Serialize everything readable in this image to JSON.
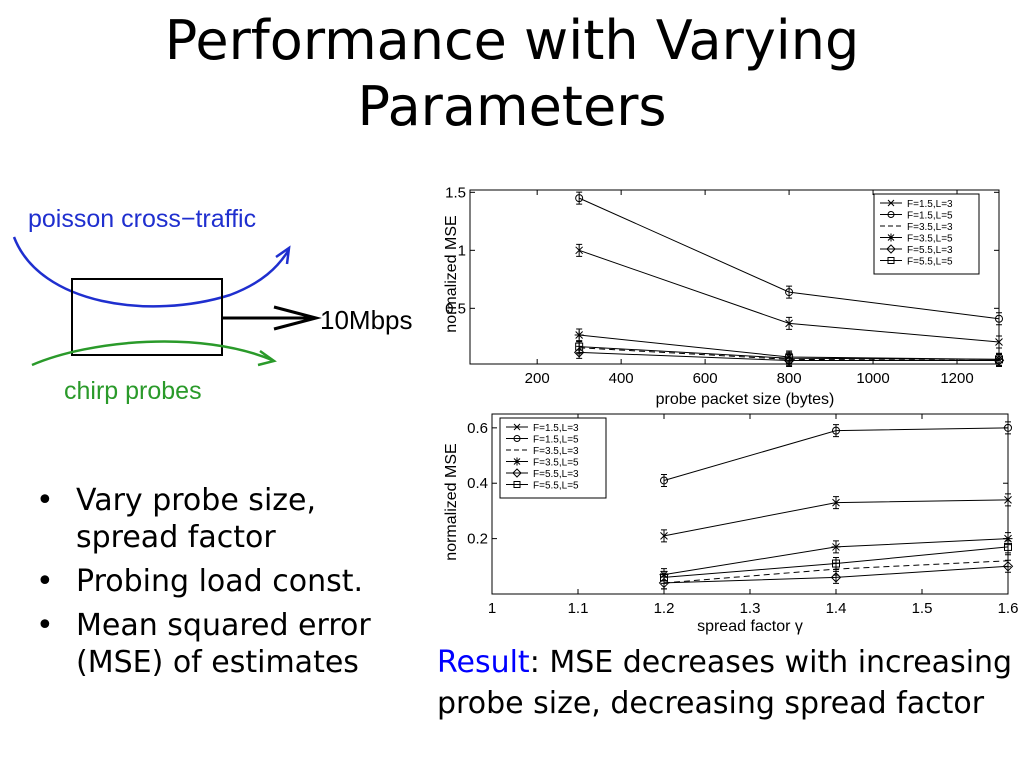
{
  "slide": {
    "title_line1": "Performance with Varying",
    "title_line2": "Parameters",
    "bullets": [
      "Vary probe size,\nspread factor",
      "Probing load const.",
      "Mean squared error\n(MSE) of estimates"
    ],
    "result_label": "Result",
    "result_text": ": MSE decreases with increasing probe size, decreasing spread factor"
  },
  "diagram": {
    "cross_traffic_label": "poisson cross−traffic",
    "link_label": "10Mbps",
    "probes_label": "chirp probes",
    "colors": {
      "cross_traffic": "#1f2fcf",
      "probes": "#2a9a2a",
      "link": "#000000"
    }
  },
  "chart_data": [
    {
      "type": "line",
      "xlabel": "probe packet size (bytes)",
      "ylabel": "normalized MSE",
      "xlim": [
        40,
        1300
      ],
      "ylim": [
        0.02,
        1.52
      ],
      "xticks": [
        200,
        400,
        600,
        800,
        1000,
        1200
      ],
      "yticks": [
        0.5,
        1,
        1.5
      ],
      "ytick_labels": [
        "0.5",
        "1",
        "1.5"
      ],
      "legend_position": "top-right",
      "x": [
        300,
        800,
        1300
      ],
      "series": [
        {
          "name": "F=1.5,L=3",
          "marker": "x",
          "dash": false,
          "values": [
            1.0,
            0.37,
            0.21
          ]
        },
        {
          "name": "F=1.5,L=5",
          "marker": "o",
          "dash": false,
          "values": [
            1.45,
            0.64,
            0.41
          ]
        },
        {
          "name": "F=3.5,L=3",
          "marker": "none",
          "dash": true,
          "values": [
            0.16,
            0.06,
            0.05
          ]
        },
        {
          "name": "F=3.5,L=5",
          "marker": "*",
          "dash": false,
          "values": [
            0.27,
            0.08,
            0.06
          ]
        },
        {
          "name": "F=5.5,L=3",
          "marker": "diamond",
          "dash": false,
          "values": [
            0.12,
            0.05,
            0.05
          ]
        },
        {
          "name": "F=5.5,L=5",
          "marker": "square",
          "dash": false,
          "values": [
            0.17,
            0.07,
            0.06
          ]
        }
      ]
    },
    {
      "type": "line",
      "xlabel": "spread factor γ",
      "ylabel": "normalized MSE",
      "xlim": [
        1,
        1.6
      ],
      "ylim": [
        0,
        0.65
      ],
      "xticks": [
        1,
        1.1,
        1.2,
        1.3,
        1.4,
        1.5,
        1.6
      ],
      "xtick_labels": [
        "1",
        "1.1",
        "1.2",
        "1.3",
        "1.4",
        "1.5",
        "1.6"
      ],
      "yticks": [
        0.2,
        0.4,
        0.6
      ],
      "ytick_labels": [
        "0.2",
        "0.4",
        "0.6"
      ],
      "legend_position": "top-left",
      "x": [
        1.2,
        1.4,
        1.6
      ],
      "series": [
        {
          "name": "F=1.5,L=3",
          "marker": "x",
          "dash": false,
          "values": [
            0.21,
            0.33,
            0.34
          ]
        },
        {
          "name": "F=1.5,L=5",
          "marker": "o",
          "dash": false,
          "values": [
            0.41,
            0.59,
            0.6
          ]
        },
        {
          "name": "F=3.5,L=3",
          "marker": "none",
          "dash": true,
          "values": [
            0.04,
            0.09,
            0.12
          ]
        },
        {
          "name": "F=3.5,L=5",
          "marker": "*",
          "dash": false,
          "values": [
            0.07,
            0.17,
            0.2
          ]
        },
        {
          "name": "F=5.5,L=3",
          "marker": "diamond",
          "dash": false,
          "values": [
            0.04,
            0.06,
            0.1
          ]
        },
        {
          "name": "F=5.5,L=5",
          "marker": "square",
          "dash": false,
          "values": [
            0.06,
            0.11,
            0.17
          ]
        }
      ]
    }
  ]
}
